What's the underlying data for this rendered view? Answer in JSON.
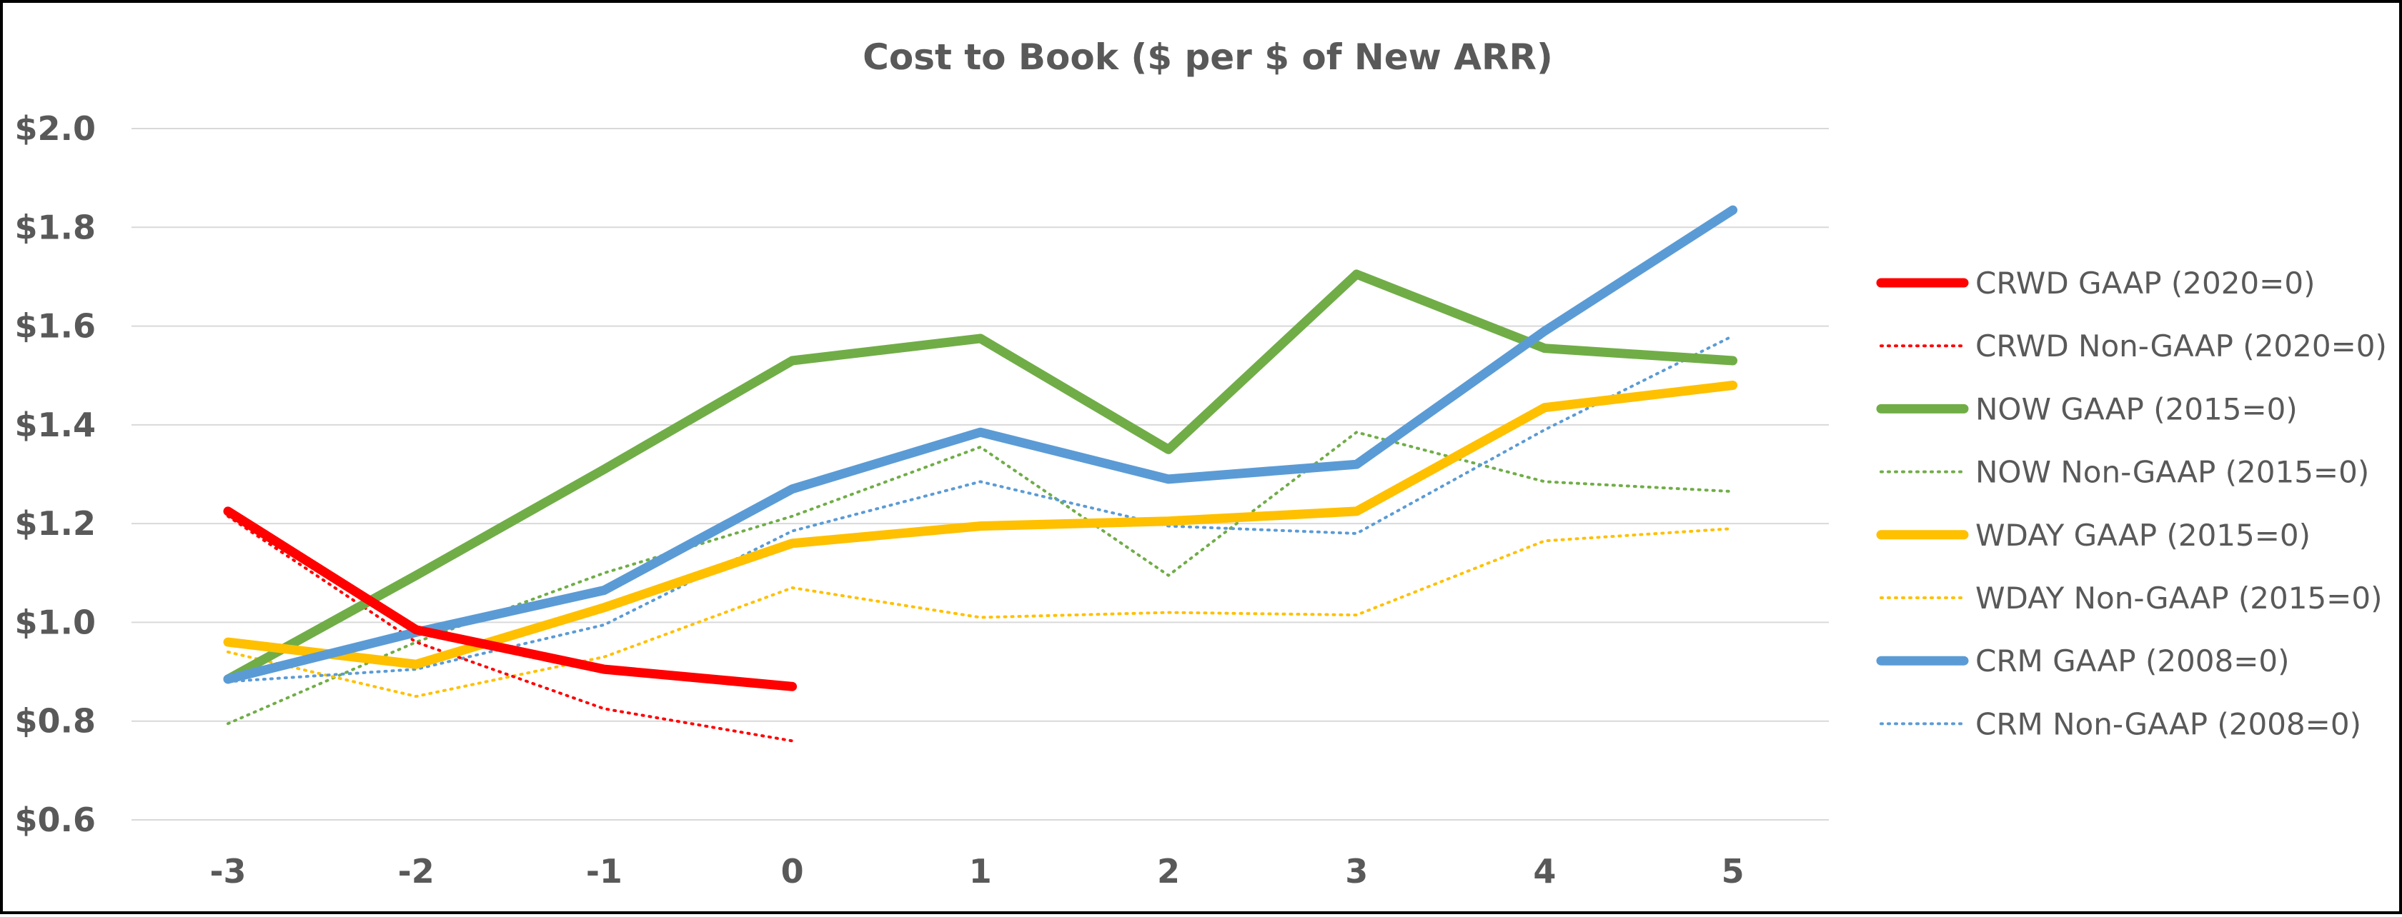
{
  "chart_data": {
    "type": "line",
    "title": "Cost to Book ($ per $ of New ARR)",
    "xlabel": "",
    "ylabel": "",
    "x": [
      -3,
      -2,
      -1,
      0,
      1,
      2,
      3,
      4,
      5
    ],
    "x_tick_labels": [
      "-3",
      "-2",
      "-1",
      "0",
      "1",
      "2",
      "3",
      "4",
      "5"
    ],
    "ylim": [
      0.6,
      2.0
    ],
    "y_ticks": [
      0.6,
      0.8,
      1.0,
      1.2,
      1.4,
      1.6,
      1.8,
      2.0
    ],
    "y_tick_labels": [
      "$0.6",
      "$0.8",
      "$1.0",
      "$1.2",
      "$1.4",
      "$1.6",
      "$1.8",
      "$2.0"
    ],
    "grid": "horizontal",
    "legend_position": "right",
    "series": [
      {
        "name": "CRWD GAAP (2020=0)",
        "color": "#FF0000",
        "style": "solid",
        "values": [
          1.225,
          0.985,
          0.905,
          0.87,
          null,
          null,
          null,
          null,
          null
        ]
      },
      {
        "name": "CRWD Non-GAAP (2020=0)",
        "color": "#FF0000",
        "style": "dotted",
        "values": [
          1.215,
          0.96,
          0.825,
          0.76,
          null,
          null,
          null,
          null,
          null
        ]
      },
      {
        "name": "NOW GAAP (2015=0)",
        "color": "#70AD47",
        "style": "solid",
        "values": [
          0.885,
          1.095,
          1.31,
          1.53,
          1.575,
          1.35,
          1.705,
          1.555,
          1.53
        ]
      },
      {
        "name": "NOW Non-GAAP (2015=0)",
        "color": "#70AD47",
        "style": "dotted",
        "values": [
          0.795,
          0.96,
          1.1,
          1.215,
          1.355,
          1.095,
          1.385,
          1.285,
          1.265
        ]
      },
      {
        "name": "WDAY GAAP (2015=0)",
        "color": "#FFC000",
        "style": "solid",
        "values": [
          0.96,
          0.915,
          1.03,
          1.16,
          1.195,
          1.205,
          1.225,
          1.435,
          1.48
        ]
      },
      {
        "name": "WDAY Non-GAAP (2015=0)",
        "color": "#FFC000",
        "style": "dotted",
        "values": [
          0.94,
          0.85,
          0.93,
          1.07,
          1.01,
          1.02,
          1.015,
          1.165,
          1.19
        ]
      },
      {
        "name": "CRM GAAP (2008=0)",
        "color": "#5B9BD5",
        "style": "solid",
        "values": [
          0.885,
          0.98,
          1.065,
          1.27,
          1.385,
          1.29,
          1.32,
          1.59,
          1.835
        ]
      },
      {
        "name": "CRM Non-GAAP (2008=0)",
        "color": "#5B9BD5",
        "style": "dotted",
        "values": [
          0.88,
          0.905,
          0.995,
          1.185,
          1.285,
          1.195,
          1.18,
          1.39,
          1.58
        ]
      }
    ]
  }
}
